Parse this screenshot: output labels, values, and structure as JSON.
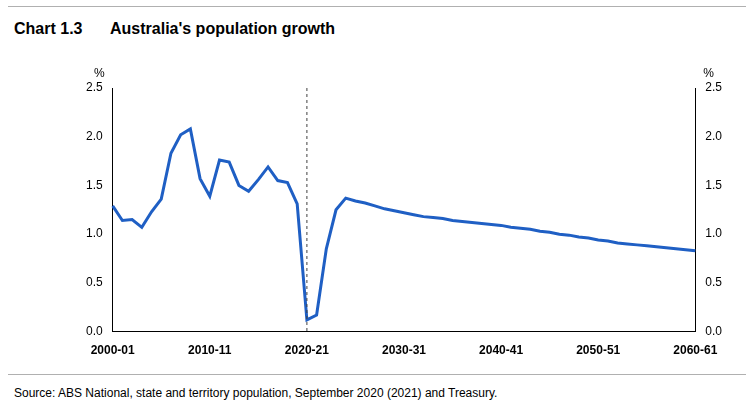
{
  "chart_data": {
    "type": "line",
    "title": "Chart 1.3",
    "subtitle": "Australia's population growth",
    "y_label": "%",
    "source": "Source: ABS National, state and territory population, September 2020 (2021) and Treasury.",
    "categories": [
      "2000-01",
      null,
      null,
      null,
      null,
      null,
      null,
      null,
      null,
      null,
      "2010-11",
      null,
      null,
      null,
      null,
      null,
      null,
      null,
      null,
      null,
      "2020-21",
      null,
      null,
      null,
      null,
      null,
      null,
      null,
      null,
      null,
      "2030-31",
      null,
      null,
      null,
      null,
      null,
      null,
      null,
      null,
      null,
      "2040-41",
      null,
      null,
      null,
      null,
      null,
      null,
      null,
      null,
      null,
      "2050-51",
      null,
      null,
      null,
      null,
      null,
      null,
      null,
      null,
      null,
      "2060-61"
    ],
    "values": [
      1.29,
      1.14,
      1.15,
      1.07,
      1.23,
      1.36,
      1.83,
      2.02,
      2.08,
      1.57,
      1.39,
      1.76,
      1.74,
      1.5,
      1.44,
      1.56,
      1.69,
      1.55,
      1.53,
      1.31,
      0.12,
      0.17,
      0.85,
      1.25,
      1.37,
      1.34,
      1.32,
      1.29,
      1.26,
      1.24,
      1.22,
      1.2,
      1.18,
      1.17,
      1.16,
      1.14,
      1.13,
      1.12,
      1.11,
      1.1,
      1.09,
      1.07,
      1.06,
      1.05,
      1.03,
      1.02,
      1.0,
      0.99,
      0.97,
      0.96,
      0.94,
      0.93,
      0.91,
      0.9,
      0.89,
      0.88,
      0.87,
      0.86,
      0.85,
      0.84,
      0.83
    ],
    "color": "#1f5fc4",
    "vline": "2020-21",
    "ylim": [
      0,
      2.5
    ],
    "yticks": [
      {
        "value": 0,
        "label": "0.0"
      },
      0.5,
      {
        "value": 1,
        "label": "1.0"
      },
      1.5,
      {
        "value": 2,
        "label": "2.0"
      },
      2.5
    ],
    "y2lim": [
      0,
      2.5
    ],
    "y2ticks": [
      {
        "value": 0,
        "label": "0.0"
      },
      0.5,
      {
        "value": 1,
        "label": "1.0"
      },
      1.5,
      {
        "value": 2,
        "label": "2.0"
      },
      2.5
    ],
    "grid": false
  }
}
